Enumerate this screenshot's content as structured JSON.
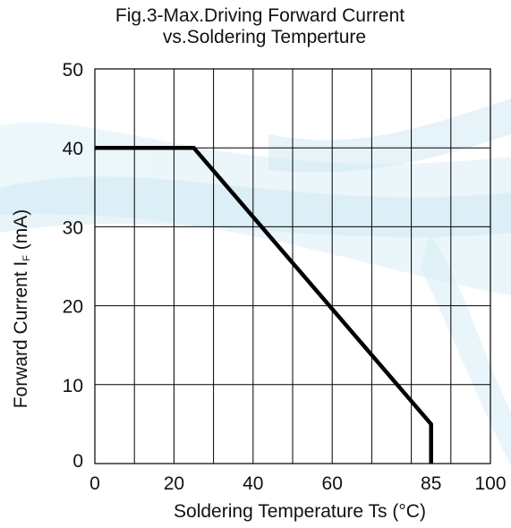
{
  "chart_data": {
    "type": "line",
    "title_line1": "Fig.3-Max.Driving Forward Current",
    "title_line2": "vs.Soldering Temperture",
    "xlabel": "Soldering Temperature Ts (°C)",
    "ylabel_prefix": "Forward Current  I",
    "ylabel_sub": "F",
    "ylabel_suffix": "  (mA)",
    "xlim": [
      0,
      100
    ],
    "ylim": [
      0,
      50
    ],
    "x_ticks": [
      0,
      20,
      40,
      60,
      85,
      100
    ],
    "y_ticks": [
      0,
      10,
      20,
      30,
      40,
      50
    ],
    "x_grid": [
      10,
      20,
      30,
      40,
      50,
      60,
      70,
      80,
      90
    ],
    "y_grid": [
      10,
      20,
      30,
      40
    ],
    "grid": true,
    "series": [
      {
        "x": [
          0,
          25,
          85,
          85
        ],
        "y": [
          40,
          40,
          5,
          0
        ],
        "color": "#000000"
      }
    ]
  }
}
